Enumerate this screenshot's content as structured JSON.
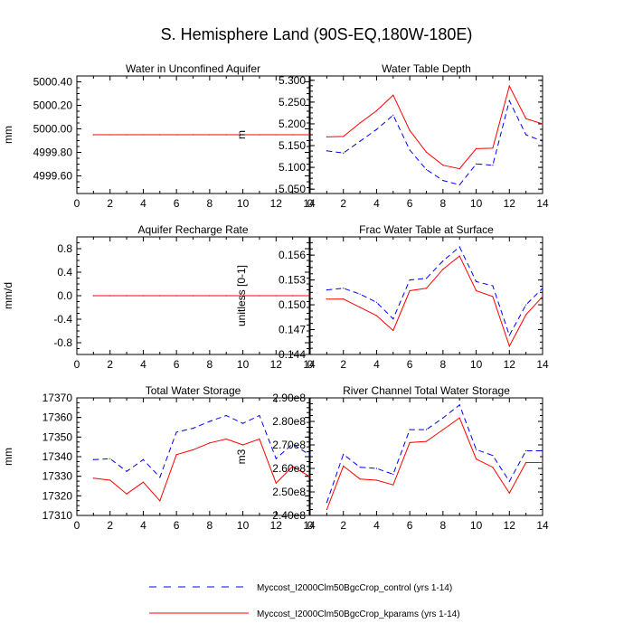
{
  "title": "S. Hemisphere Land (90S-EQ,180W-180E)",
  "colors": {
    "control": "#0000ff",
    "kparams": "#ff0000",
    "frame": "#000000"
  },
  "legend": [
    {
      "series": "control",
      "label": "Myccost_I2000Clm50BgcCrop_control (yrs 1-14)",
      "style": "dashed"
    },
    {
      "series": "kparams",
      "label": "Myccost_I2000Clm50BgcCrop_kparams (yrs 1-14)",
      "style": "solid"
    }
  ],
  "chart_data": [
    {
      "type": "line",
      "title": "Water in Unconfined Aquifer",
      "ylabel": "mm",
      "xlim": [
        0,
        14
      ],
      "ylim": [
        4999.45,
        5000.45
      ],
      "xticks": [
        0,
        2,
        4,
        6,
        8,
        10,
        12,
        14
      ],
      "yticks": [
        4999.6,
        4999.8,
        5000.0,
        5000.2,
        5000.4
      ],
      "ytick_labels": [
        "4999.60",
        "4999.80",
        "5000.00",
        "5000.20",
        "5000.40"
      ],
      "x": [
        1,
        2,
        3,
        4,
        5,
        6,
        7,
        8,
        9,
        10,
        11,
        12,
        13,
        14
      ],
      "series": [
        {
          "name": "Myccost_I2000Clm50BgcCrop_control (yrs 1-14)",
          "key": "control",
          "values": [
            4999.95,
            4999.95,
            4999.95,
            4999.95,
            4999.95,
            4999.95,
            4999.95,
            4999.95,
            4999.95,
            4999.95,
            4999.95,
            4999.95,
            4999.95,
            4999.95
          ]
        },
        {
          "name": "Myccost_I2000Clm50BgcCrop_kparams (yrs 1-14)",
          "key": "kparams",
          "values": [
            4999.95,
            4999.95,
            4999.95,
            4999.95,
            4999.95,
            4999.95,
            4999.95,
            4999.95,
            4999.95,
            4999.95,
            4999.95,
            4999.95,
            4999.95,
            4999.95
          ]
        }
      ]
    },
    {
      "type": "line",
      "title": "Water Table Depth",
      "ylabel": "m",
      "xlim": [
        0,
        14
      ],
      "ylim": [
        5.04,
        5.31
      ],
      "xticks": [
        0,
        2,
        4,
        6,
        8,
        10,
        12,
        14
      ],
      "yticks": [
        5.05,
        5.1,
        5.15,
        5.2,
        5.25,
        5.3
      ],
      "ytick_labels": [
        "5.050",
        "5.100",
        "5.150",
        "5.200",
        "5.250",
        "5.300"
      ],
      "x": [
        1,
        2,
        3,
        4,
        5,
        6,
        7,
        8,
        9,
        10,
        11,
        12,
        13,
        14
      ],
      "series": [
        {
          "name": "Myccost_I2000Clm50BgcCrop_control (yrs 1-14)",
          "key": "control",
          "values": [
            5.138,
            5.133,
            5.16,
            5.187,
            5.22,
            5.14,
            5.095,
            5.07,
            5.06,
            5.108,
            5.105,
            5.253,
            5.175,
            5.16
          ]
        },
        {
          "name": "Myccost_I2000Clm50BgcCrop_kparams (yrs 1-14)",
          "key": "kparams",
          "values": [
            5.17,
            5.171,
            5.202,
            5.23,
            5.266,
            5.185,
            5.135,
            5.105,
            5.097,
            5.143,
            5.144,
            5.287,
            5.212,
            5.2
          ]
        }
      ]
    },
    {
      "type": "line",
      "title": "Aquifer Recharge Rate",
      "ylabel": "mm/d",
      "xlim": [
        0,
        14
      ],
      "ylim": [
        -1,
        1
      ],
      "xticks": [
        0,
        2,
        4,
        6,
        8,
        10,
        12,
        14
      ],
      "yticks": [
        -0.8,
        -0.4,
        0.0,
        0.4,
        0.8
      ],
      "ytick_labels": [
        "-0.8",
        "-0.4",
        "0.0",
        "0.4",
        "0.8"
      ],
      "x": [
        1,
        2,
        3,
        4,
        5,
        6,
        7,
        8,
        9,
        10,
        11,
        12,
        13,
        14
      ],
      "series": [
        {
          "name": "Myccost_I2000Clm50BgcCrop_control (yrs 1-14)",
          "key": "control",
          "values": [
            0,
            0,
            0,
            0,
            0,
            0,
            0,
            0,
            0,
            0,
            0,
            0,
            0,
            0
          ]
        },
        {
          "name": "Myccost_I2000Clm50BgcCrop_kparams (yrs 1-14)",
          "key": "kparams",
          "values": [
            0,
            0,
            0,
            0,
            0,
            0,
            0,
            0,
            0,
            0,
            0,
            0,
            0,
            0
          ]
        }
      ]
    },
    {
      "type": "line",
      "title": "Frac Water Table at Surface",
      "ylabel": "unitless [0-1]",
      "xlim": [
        0,
        14
      ],
      "ylim": [
        0.144,
        0.1582
      ],
      "xticks": [
        0,
        2,
        4,
        6,
        8,
        10,
        12,
        14
      ],
      "yticks": [
        0.144,
        0.147,
        0.15,
        0.153,
        0.156
      ],
      "ytick_labels": [
        "0.144",
        "0.147",
        "0.150",
        "0.153",
        "0.156"
      ],
      "x": [
        1,
        2,
        3,
        4,
        5,
        6,
        7,
        8,
        9,
        10,
        11,
        12,
        13,
        14
      ],
      "series": [
        {
          "name": "Myccost_I2000Clm50BgcCrop_control (yrs 1-14)",
          "key": "control",
          "values": [
            0.1518,
            0.152,
            0.1513,
            0.1503,
            0.1483,
            0.153,
            0.1532,
            0.1553,
            0.157,
            0.1528,
            0.1523,
            0.1463,
            0.15,
            0.152
          ]
        },
        {
          "name": "Myccost_I2000Clm50BgcCrop_kparams (yrs 1-14)",
          "key": "kparams",
          "values": [
            0.1507,
            0.1507,
            0.1497,
            0.1487,
            0.1469,
            0.1517,
            0.152,
            0.1543,
            0.1559,
            0.1517,
            0.151,
            0.145,
            0.1488,
            0.151
          ]
        }
      ]
    },
    {
      "type": "line",
      "title": "Total Water Storage",
      "ylabel": "mm",
      "xlim": [
        0,
        14
      ],
      "ylim": [
        17310,
        17370
      ],
      "xticks": [
        0,
        2,
        4,
        6,
        8,
        10,
        12,
        14
      ],
      "yticks": [
        17310,
        17320,
        17330,
        17340,
        17350,
        17360,
        17370
      ],
      "ytick_labels": [
        "17310",
        "17320",
        "17330",
        "17340",
        "17350",
        "17360",
        "17370"
      ],
      "x": [
        1,
        2,
        3,
        4,
        5,
        6,
        7,
        8,
        9,
        10,
        11,
        12,
        13,
        14
      ],
      "series": [
        {
          "name": "Myccost_I2000Clm50BgcCrop_control (yrs 1-14)",
          "key": "control",
          "values": [
            17338.5,
            17339,
            17332.5,
            17338.5,
            17329.5,
            17352.5,
            17354.5,
            17358,
            17361,
            17357,
            17361,
            17339,
            17346.5,
            17341
          ]
        },
        {
          "name": "Myccost_I2000Clm50BgcCrop_kparams (yrs 1-14)",
          "key": "kparams",
          "values": [
            17329,
            17328,
            17321,
            17327,
            17317.5,
            17341,
            17343.5,
            17347,
            17349,
            17346,
            17349,
            17326.5,
            17335,
            17330
          ]
        }
      ]
    },
    {
      "type": "line",
      "title": "River Channel Total Water Storage",
      "ylabel": "m3",
      "xlim": [
        0,
        14
      ],
      "ylim": [
        240000000,
        290000000
      ],
      "xticks": [
        0,
        2,
        4,
        6,
        8,
        10,
        12,
        14
      ],
      "yticks": [
        240000000,
        250000000,
        260000000,
        270000000,
        280000000,
        290000000
      ],
      "ytick_labels": [
        "2.40e8",
        "2.50e8",
        "2.60e8",
        "2.70e8",
        "2.80e8",
        "2.90e8"
      ],
      "x": [
        1,
        2,
        3,
        4,
        5,
        6,
        7,
        8,
        9,
        10,
        11,
        12,
        13,
        14
      ],
      "series": [
        {
          "name": "Myccost_I2000Clm50BgcCrop_control (yrs 1-14)",
          "key": "control",
          "values": [
            245500000,
            266000000,
            260500000,
            260000000,
            257500000,
            276500000,
            276500000,
            281500000,
            287000000,
            268000000,
            265500000,
            254500000,
            267500000,
            267500000
          ]
        },
        {
          "name": "Myccost_I2000Clm50BgcCrop_kparams (yrs 1-14)",
          "key": "kparams",
          "values": [
            242500000,
            261000000,
            255500000,
            255000000,
            253000000,
            271000000,
            271500000,
            276500000,
            281500000,
            264000000,
            260500000,
            249500000,
            262500000,
            262500000
          ]
        }
      ]
    }
  ]
}
